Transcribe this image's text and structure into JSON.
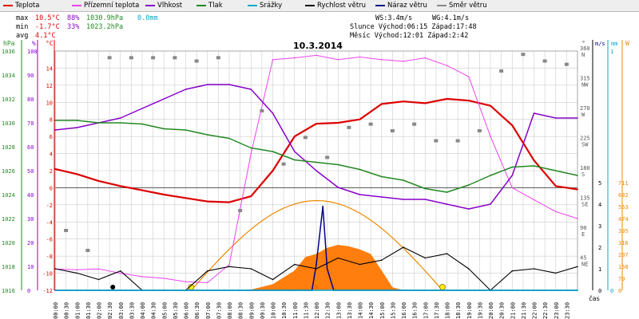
{
  "legend": [
    {
      "label": "Teplota",
      "color": "#dd0000"
    },
    {
      "label": "Přízemní teplota",
      "color": "#ee44ee"
    },
    {
      "label": "Vlhkost",
      "color": "#8800cc"
    },
    {
      "label": "Tlak",
      "color": "#228822"
    },
    {
      "label": "Srážky",
      "color": "#00aacc"
    },
    {
      "label": "Rychlost větru",
      "color": "#000000"
    },
    {
      "label": "Náraz větru",
      "color": "#000088"
    },
    {
      "label": "Směr větru",
      "color": "#888888"
    }
  ],
  "stats": {
    "max_label": "max",
    "max_temp": "10.5°C",
    "max_hum": "88%",
    "max_press": "1030.9hPa",
    "max_rain": "0.0mm",
    "min_label": "min",
    "min_temp": "-1.7°C",
    "min_hum": "33%",
    "min_press": "1023.2hPa",
    "avg_label": "avg",
    "avg_temp": "4.1°C",
    "ws": "WS:3.4m/s",
    "wg": "WG:4.1m/s",
    "sun": "Slunce Východ:06:15  Západ:17:48",
    "moon": "Měsíc  Východ:12:01  Západ:2:42"
  },
  "colors": {
    "temp": "#dd0000",
    "ground": "#ee44ee",
    "hum": "#8800cc",
    "press": "#228822",
    "rain": "#00aacc",
    "wind": "#000000",
    "gust": "#000088",
    "dir": "#888888",
    "sun": "#ee8800",
    "solar": "#ff7700",
    "grid": "#cccccc",
    "zero": "#555555"
  },
  "chart_data": {
    "type": "line",
    "title": "10.3.2014",
    "xlabel": "čas",
    "x_ticks": [
      "00:00",
      "00:30",
      "01:00",
      "01:30",
      "02:00",
      "02:30",
      "03:00",
      "03:30",
      "04:00",
      "04:30",
      "05:00",
      "05:30",
      "06:00",
      "06:30",
      "07:00",
      "07:30",
      "08:00",
      "08:30",
      "09:00",
      "09:30",
      "10:00",
      "10:30",
      "11:00",
      "11:30",
      "12:00",
      "12:30",
      "13:00",
      "13:30",
      "14:00",
      "14:30",
      "15:00",
      "15:30",
      "16:00",
      "16:30",
      "17:00",
      "17:30",
      "18:00",
      "18:30",
      "19:00",
      "19:30",
      "20:00",
      "20:30",
      "21:00",
      "21:30",
      "22:00",
      "22:30",
      "23:00",
      "23:30"
    ],
    "axes": {
      "pressure": {
        "label": "hPa",
        "min": 1016,
        "max": 1036,
        "ticks": [
          1016,
          1018,
          1020,
          1022,
          1024,
          1026,
          1028,
          1030,
          1032,
          1034,
          1036
        ]
      },
      "humidity": {
        "label": "%",
        "min": 0,
        "max": 100,
        "ticks": [
          0,
          10,
          20,
          30,
          40,
          50,
          60,
          70,
          80,
          90,
          100
        ]
      },
      "temperature": {
        "label": "°C",
        "min": -12,
        "max": 16,
        "ticks": [
          -12,
          -10,
          -8,
          -6,
          -4,
          -2,
          0,
          2,
          4,
          6,
          8,
          10,
          12,
          14
        ]
      },
      "direction": {
        "label": "°",
        "ticks": [
          {
            "v": 45,
            "n": "NE"
          },
          {
            "v": 90,
            "n": "E"
          },
          {
            "v": 135,
            "n": "SE"
          },
          {
            "v": 180,
            "n": "S"
          },
          {
            "v": 225,
            "n": "SW"
          },
          {
            "v": 270,
            "n": "W"
          },
          {
            "v": 315,
            "n": "NW"
          },
          {
            "v": 360,
            "n": "N"
          }
        ]
      },
      "wind": {
        "label": "m/s",
        "ticks": [
          0,
          1,
          2,
          3,
          4,
          5
        ]
      },
      "rain": {
        "label": "mm",
        "ticks": [
          0,
          1
        ]
      },
      "solar": {
        "label": "W",
        "ticks": [
          0,
          79,
          158,
          237,
          316,
          395,
          474,
          553,
          632,
          711
        ]
      }
    },
    "series": [
      {
        "name": "Teplota",
        "axis": "temperature",
        "x": [
          0,
          1,
          2,
          3,
          4,
          5,
          6,
          7,
          8,
          9,
          10,
          11,
          12,
          13,
          14,
          15,
          16,
          17,
          18,
          19,
          20,
          21,
          22,
          23,
          24
        ],
        "values": [
          2.2,
          1.6,
          0.8,
          0.2,
          -0.3,
          -0.8,
          -1.2,
          -1.6,
          -1.7,
          -1.0,
          2.0,
          6.0,
          7.5,
          7.6,
          8.0,
          9.8,
          10.1,
          9.9,
          10.4,
          10.2,
          9.6,
          7.3,
          3.2,
          0.2,
          -0.2
        ]
      },
      {
        "name": "Přízemní teplota",
        "axis": "temperature",
        "x": [
          0,
          1,
          2,
          3,
          4,
          5,
          6,
          7,
          8,
          9,
          10,
          11,
          12,
          13,
          14,
          15,
          16,
          17,
          18,
          19,
          20,
          21,
          22,
          23,
          24
        ],
        "values": [
          -9.5,
          -9.6,
          -9.5,
          -10.0,
          -10.4,
          -10.6,
          -11.0,
          -11.1,
          -9.0,
          4.0,
          15.0,
          15.2,
          15.5,
          15.0,
          15.3,
          15.0,
          14.8,
          15.2,
          14.3,
          13.0,
          6.0,
          0.0,
          -1.4,
          -2.8,
          -3.6
        ]
      },
      {
        "name": "Vlhkost",
        "axis": "humidity",
        "x": [
          0,
          1,
          2,
          3,
          4,
          5,
          6,
          7,
          8,
          9,
          10,
          11,
          12,
          13,
          14,
          15,
          16,
          17,
          18,
          19,
          20,
          21,
          22,
          23,
          24
        ],
        "values": [
          67,
          68,
          70,
          72,
          76,
          80,
          84,
          86,
          86,
          84,
          74,
          58,
          50,
          43,
          40,
          39,
          38,
          38,
          36,
          34,
          36,
          48,
          74,
          72,
          72
        ]
      },
      {
        "name": "Tlak",
        "axis": "pressure",
        "x": [
          0,
          1,
          2,
          3,
          4,
          5,
          6,
          7,
          8,
          9,
          10,
          11,
          12,
          13,
          14,
          15,
          16,
          17,
          18,
          19,
          20,
          21,
          22,
          23,
          24
        ],
        "values": [
          1030.2,
          1030.2,
          1030.0,
          1030.0,
          1029.9,
          1029.5,
          1029.4,
          1029.0,
          1028.7,
          1027.9,
          1027.6,
          1026.9,
          1026.7,
          1026.5,
          1026.1,
          1025.5,
          1025.2,
          1024.5,
          1024.2,
          1024.8,
          1025.6,
          1026.3,
          1026.4,
          1026.0,
          1025.6
        ]
      },
      {
        "name": "Rychlost větru",
        "axis": "wind",
        "x": [
          0,
          1,
          2,
          3,
          4,
          5,
          6,
          7,
          8,
          9,
          10,
          11,
          12,
          13,
          14,
          15,
          16,
          17,
          18,
          19,
          20,
          21,
          22,
          23,
          24
        ],
        "values": [
          1.0,
          0.8,
          0.5,
          0.9,
          0.0,
          0.0,
          0.0,
          0.9,
          1.1,
          1.0,
          0.5,
          1.2,
          1.0,
          1.5,
          1.2,
          1.4,
          2.0,
          1.5,
          1.7,
          1.0,
          0.0,
          0.9,
          1.0,
          0.8,
          1.1
        ]
      },
      {
        "name": "Náraz větru",
        "axis": "wind",
        "x": [
          0,
          11,
          11.8,
          12.0,
          12.3,
          12.5,
          12.8,
          13,
          24
        ],
        "values": [
          0,
          0,
          0,
          1.2,
          3.9,
          1.0,
          0,
          0,
          0
        ]
      },
      {
        "name": "Srážky",
        "axis": "rain",
        "x": [
          0,
          24
        ],
        "values": [
          0,
          0
        ]
      }
    ],
    "wind_direction": {
      "x": [
        0.5,
        1.5,
        2.5,
        3.5,
        4.5,
        5.5,
        6.5,
        7.5,
        8.5,
        9.5,
        10.5,
        11.5,
        12.5,
        13.5,
        14.5,
        15.5,
        16.5,
        17.5,
        18.5,
        19.5,
        20.5,
        21.5,
        22.5,
        23.5
      ],
      "values": [
        90,
        60,
        350,
        350,
        350,
        350,
        345,
        350,
        120,
        270,
        190,
        230,
        200,
        245,
        250,
        240,
        250,
        225,
        225,
        240,
        330,
        355,
        345,
        340
      ]
    },
    "solar_radiation": {
      "x": [
        6,
        7,
        8,
        9,
        10,
        11,
        11.5,
        12,
        12.5,
        13,
        13.5,
        14,
        14.5,
        15,
        15.5,
        16,
        17
      ],
      "values": [
        0,
        0,
        0,
        5,
        40,
        130,
        220,
        240,
        280,
        300,
        290,
        270,
        240,
        130,
        20,
        0,
        0
      ]
    },
    "sun_curve": {
      "sunrise": "06:15",
      "sunset": "17:48",
      "peak_deg": 135
    }
  }
}
